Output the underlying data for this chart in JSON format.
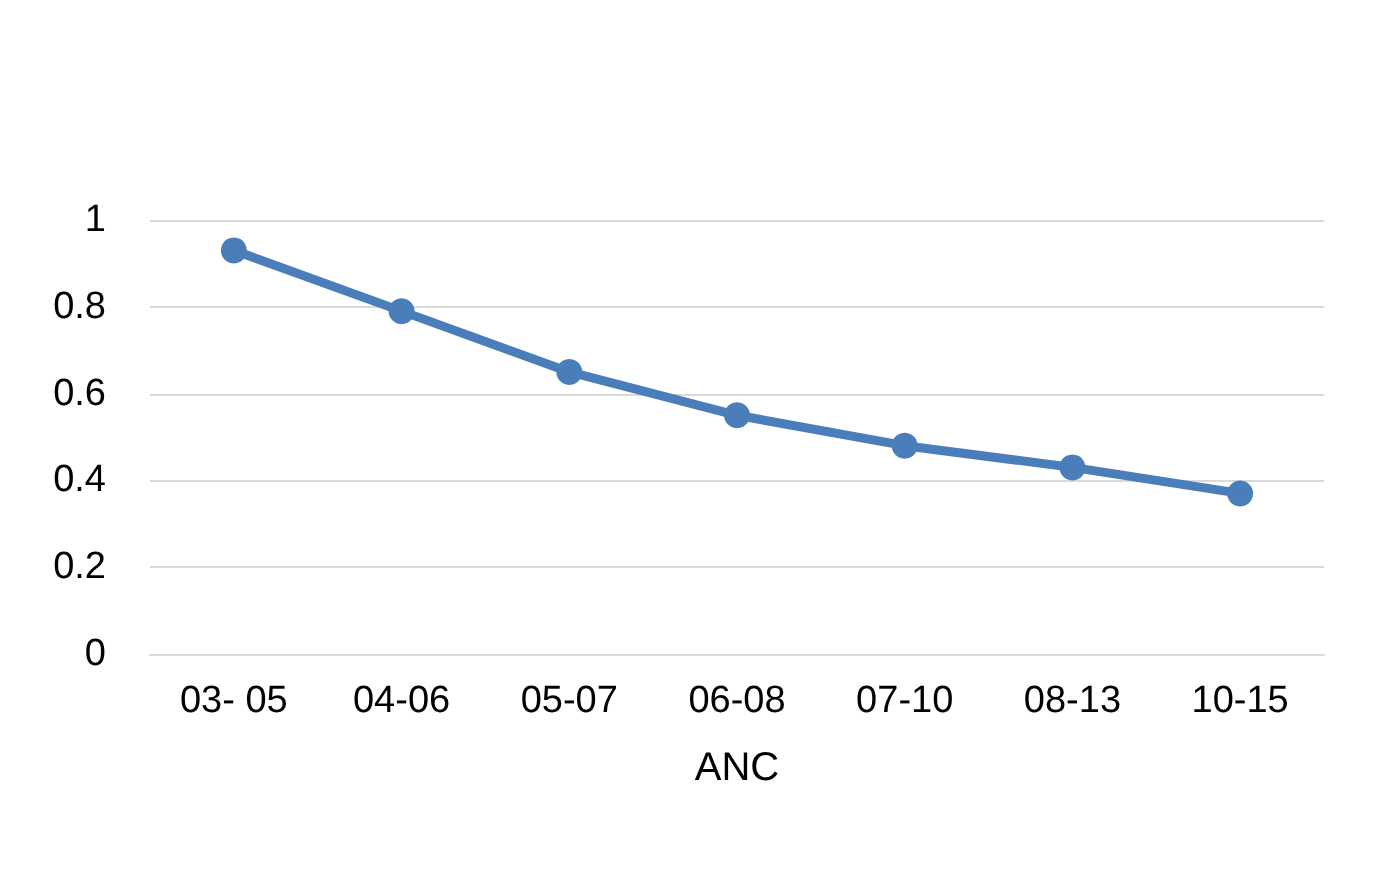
{
  "chart_data": {
    "type": "line",
    "xlabel": "ANC",
    "categories": [
      "03- 05",
      "04-06",
      "05-07",
      "06-08",
      "07-10",
      "08-13",
      "10-15"
    ],
    "series": [
      {
        "color": "#4a7ebb",
        "values": [
          0.93,
          0.79,
          0.65,
          0.55,
          0.48,
          0.43,
          0.37
        ]
      }
    ],
    "ylim": [
      0,
      1
    ],
    "yticks": [
      0,
      0.2,
      0.4,
      0.6,
      0.8,
      1
    ],
    "grid": "y",
    "marker": "circle",
    "line_style": "solid"
  }
}
